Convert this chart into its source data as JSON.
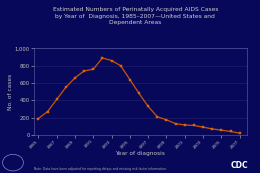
{
  "title": "Estimated Numbers of Perinatally Acquired AIDS Cases\nby Year of  Diagnosis, 1985–2007—United States and\nDependent Areas",
  "xlabel": "Year of diagnosis",
  "ylabel": "No. of cases",
  "background_color": "#08085a",
  "plot_bg_color": "#08085a",
  "line_color": "#cc5500",
  "marker_color": "#dd6600",
  "title_color": "#d0d0d0",
  "axis_label_color": "#c0c0c0",
  "tick_label_color": "#c0c0c0",
  "spine_color": "#6666aa",
  "footnote": "Note: Data have been adjusted for reporting delays and missing risk factor information.",
  "years": [
    1985,
    1986,
    1987,
    1988,
    1989,
    1990,
    1991,
    1992,
    1993,
    1994,
    1995,
    1996,
    1997,
    1998,
    1999,
    2000,
    2001,
    2002,
    2003,
    2004,
    2005,
    2006,
    2007
  ],
  "values": [
    190,
    270,
    410,
    550,
    660,
    740,
    760,
    890,
    860,
    800,
    640,
    480,
    330,
    210,
    175,
    130,
    115,
    110,
    90,
    70,
    55,
    40,
    20
  ],
  "ylim": [
    0,
    1000
  ],
  "yticks": [
    0,
    200,
    400,
    600,
    800,
    1000
  ],
  "ytick_labels": [
    "0",
    "200",
    "400",
    "600",
    "800",
    "1,000"
  ],
  "xtick_years": [
    1985,
    1987,
    1989,
    1991,
    1993,
    1995,
    1997,
    1999,
    2001,
    2003,
    2005,
    2007
  ]
}
